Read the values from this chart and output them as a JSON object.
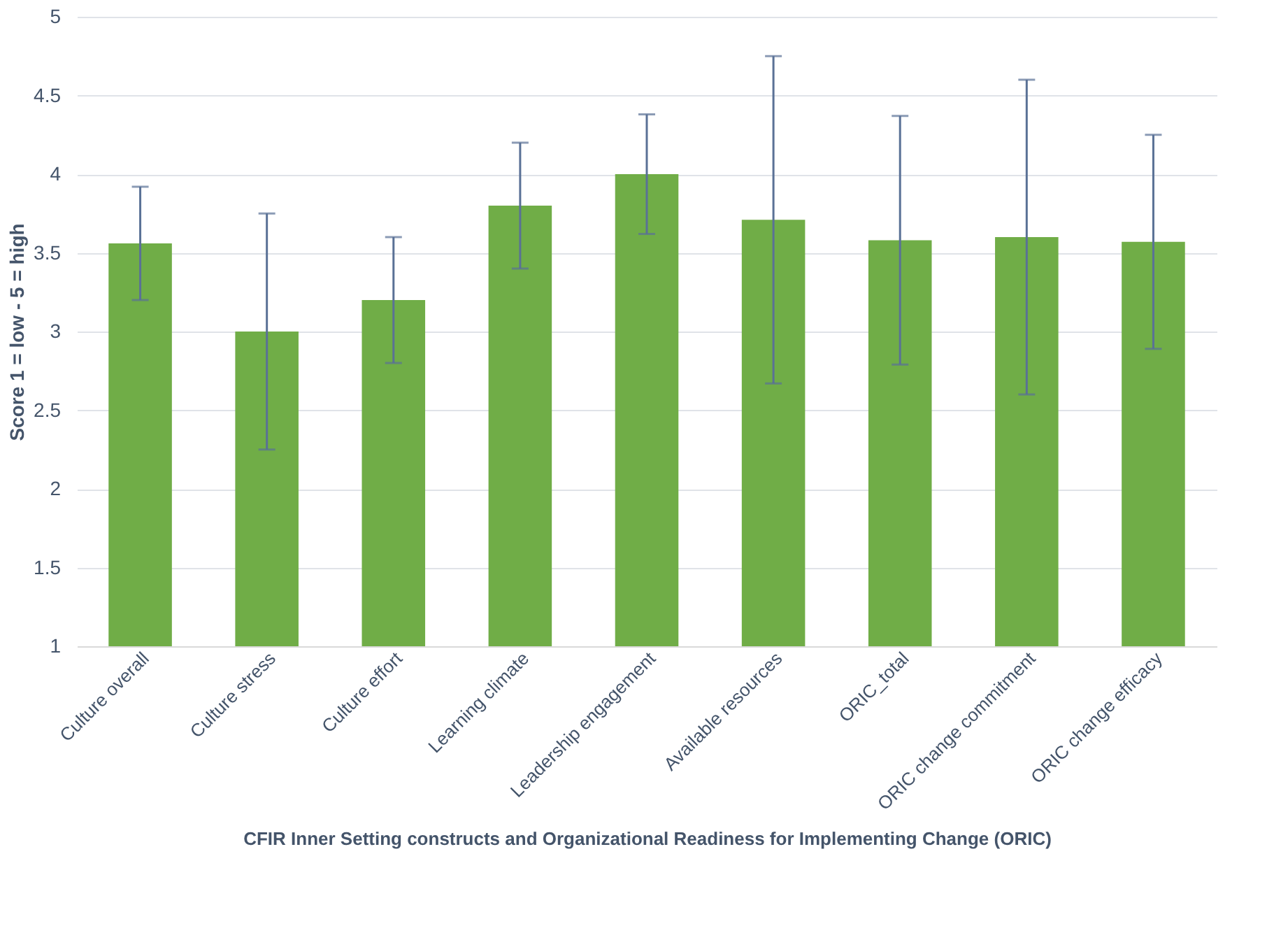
{
  "chart_data": {
    "type": "bar",
    "xlabel": "CFIR Inner Setting constructs and Organizational Readiness for Implementing Change (ORIC)",
    "ylabel": "Score 1 = low - 5 = high",
    "categories": [
      "Culture overall",
      "Culture stress",
      "Culture effort",
      "Learning climate",
      "Leadership engagement",
      "Available resources",
      "ORIC_total",
      "ORIC change commitment",
      "ORIC change efficacy"
    ],
    "series": [
      {
        "color": "#70ad47",
        "values": [
          3.56,
          3.0,
          3.2,
          3.8,
          4.0,
          3.71,
          3.58,
          3.6,
          3.57
        ],
        "errors": [
          [
            3.2,
            3.92
          ],
          [
            2.25,
            3.75
          ],
          [
            2.8,
            3.6
          ],
          [
            3.4,
            4.2
          ],
          [
            3.62,
            4.38
          ],
          [
            2.67,
            4.75
          ],
          [
            2.79,
            4.37
          ],
          [
            2.6,
            4.6
          ],
          [
            2.89,
            4.25
          ]
        ]
      }
    ],
    "ylim": [
      1,
      5
    ],
    "yticks": [
      1,
      1.5,
      2,
      2.5,
      3,
      3.5,
      4,
      4.5,
      5
    ],
    "grid": "y"
  }
}
